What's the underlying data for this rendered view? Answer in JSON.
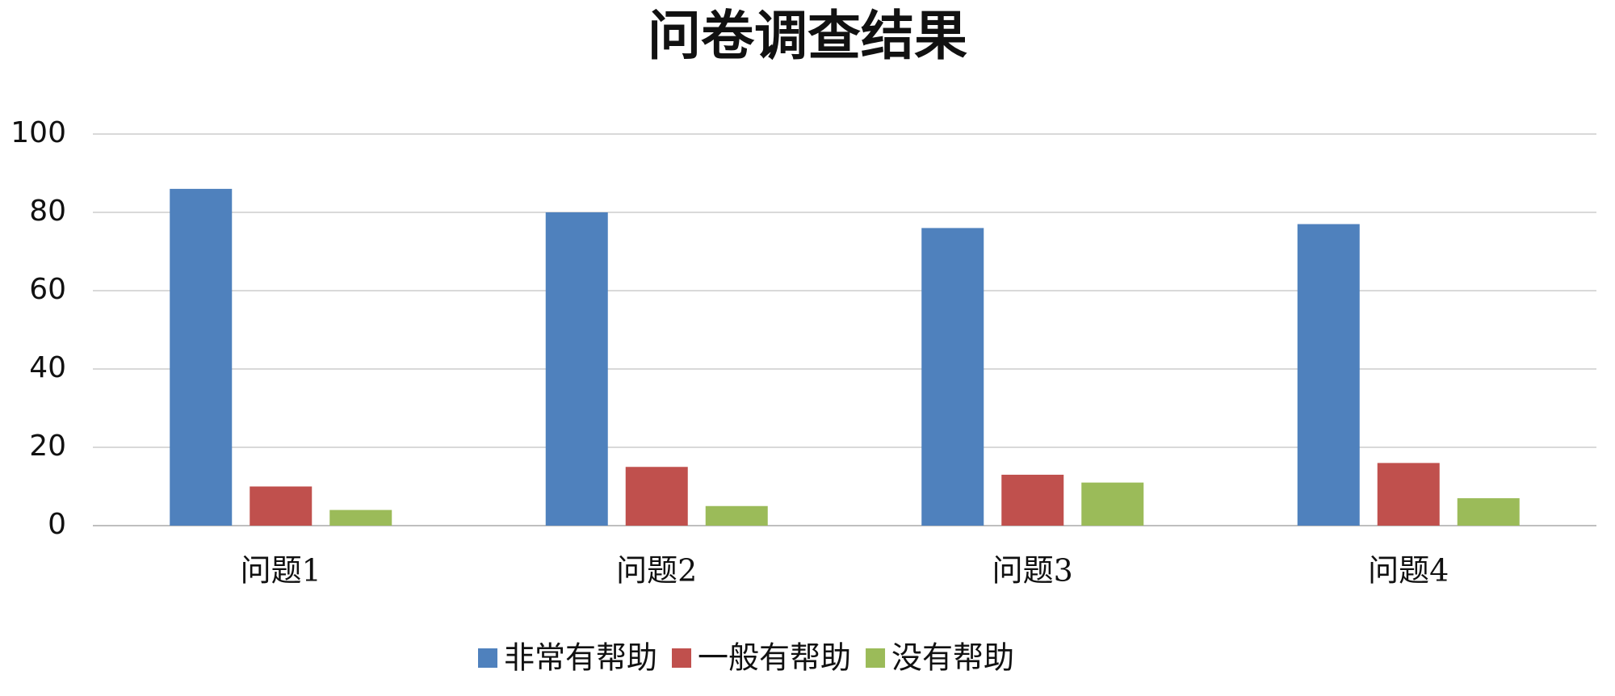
{
  "chart_data": {
    "type": "bar",
    "title": "问卷调查结果",
    "categories": [
      "问题1",
      "问题2",
      "问题3",
      "问题4"
    ],
    "series": [
      {
        "name": "非常有帮助",
        "color": "#4f81bd",
        "values": [
          86,
          80,
          76,
          77
        ]
      },
      {
        "name": "一般有帮助",
        "color": "#c0504d",
        "values": [
          10,
          15,
          13,
          16
        ]
      },
      {
        "name": "没有帮助",
        "color": "#9bbb59",
        "values": [
          4,
          5,
          11,
          7
        ]
      }
    ],
    "ylim": [
      0,
      100
    ],
    "yticks": [
      0,
      20,
      40,
      60,
      80,
      100
    ],
    "grid": true,
    "legend": "bottom"
  }
}
